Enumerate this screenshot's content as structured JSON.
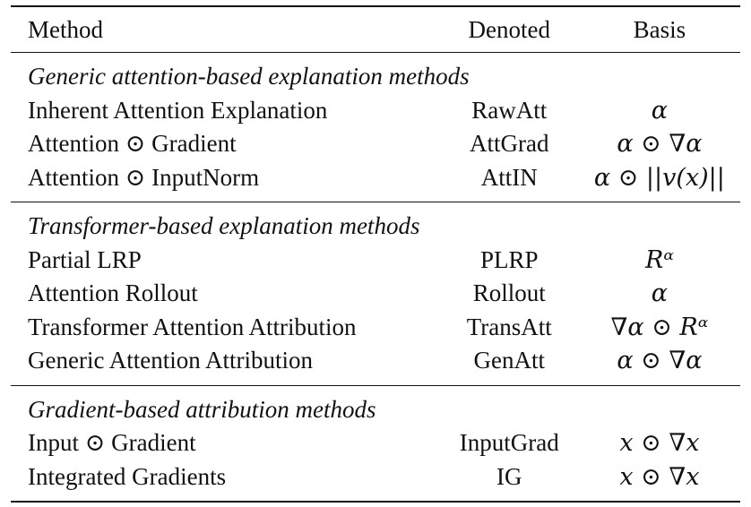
{
  "header": {
    "method": "Method",
    "denoted": "Denoted",
    "basis": "Basis"
  },
  "sections": [
    {
      "title": "Generic attention-based explanation methods",
      "rows": [
        {
          "method": "Inherent Attention Explanation",
          "denoted": "RawAtt",
          "basis": "α"
        },
        {
          "method": "Attention ⊙ Gradient",
          "denoted": "AttGrad",
          "basis": "α ⊙ ∇α"
        },
        {
          "method": "Attention ⊙ InputNorm",
          "denoted": "AttIN",
          "basis": "α ⊙ ||v(x)||"
        }
      ]
    },
    {
      "title": "Transformer-based explanation methods",
      "rows": [
        {
          "method": "Partial LRP",
          "denoted": "PLRP",
          "basis": "Rᵅ"
        },
        {
          "method": "Attention Rollout",
          "denoted": "Rollout",
          "basis": "α"
        },
        {
          "method": "Transformer Attention Attribution",
          "denoted": "TransAtt",
          "basis": "∇α ⊙ Rᵅ"
        },
        {
          "method": "Generic Attention Attribution",
          "denoted": "GenAtt",
          "basis": "α ⊙ ∇α"
        }
      ]
    },
    {
      "title": "Gradient-based attribution methods",
      "rows": [
        {
          "method": "Input ⊙ Gradient",
          "denoted": "InputGrad",
          "basis": "x ⊙ ∇x"
        },
        {
          "method": "Integrated Gradients",
          "denoted": "IG",
          "basis": "x ⊙ ∇x"
        }
      ]
    }
  ]
}
